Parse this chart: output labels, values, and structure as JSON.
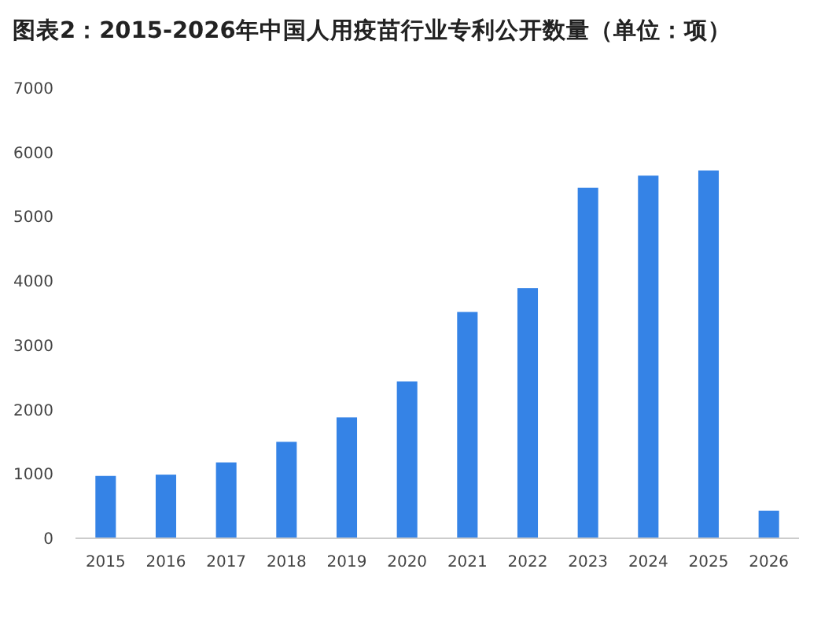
{
  "chart_data": {
    "type": "bar",
    "title": "图表2：2015-2026年中国人用疫苗行业专利公开数量（单位：项）",
    "categories": [
      "2015",
      "2016",
      "2017",
      "2018",
      "2019",
      "2020",
      "2021",
      "2022",
      "2023",
      "2024",
      "2025",
      "2026"
    ],
    "values": [
      970,
      990,
      1180,
      1500,
      1880,
      2440,
      3520,
      3890,
      5450,
      5640,
      5720,
      430
    ],
    "color": "#3583e6",
    "ylim": [
      0,
      7000
    ],
    "yticks": [
      0,
      1000,
      2000,
      3000,
      4000,
      5000,
      6000,
      7000
    ],
    "grid": false
  }
}
